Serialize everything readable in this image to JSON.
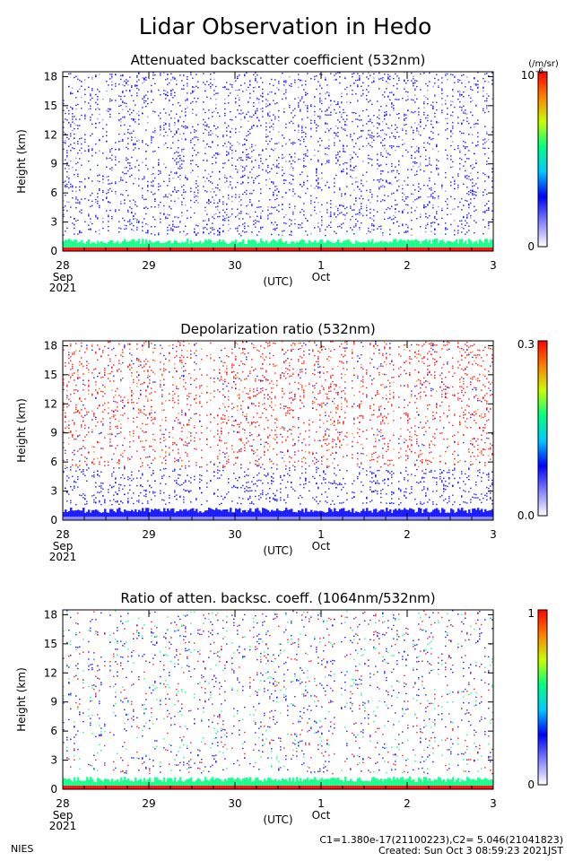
{
  "title": "Lidar Observation in Hedo",
  "footer": {
    "institution": "NIES",
    "constants": "C1=1.380e-17(21100223),C2= 5.046(21041823)",
    "created": "Created: Sun Oct  3 08:59:23 2021JST"
  },
  "colors": {
    "scale": [
      "#ffffff",
      "#8080ff",
      "#0000ff",
      "#00c8ff",
      "#00ff80",
      "#c8ff00",
      "#ff8000",
      "#ff0000"
    ]
  },
  "chart_data": [
    {
      "type": "heatmap",
      "title": "Attenuated backscatter coefficient (532nm)",
      "ylabel": "Height (km)",
      "xlabel": "(UTC)",
      "x_ticks": [
        {
          "value": 0,
          "label": "28",
          "sub": "Sep",
          "sub2": "2021"
        },
        {
          "value": 1,
          "label": "29",
          "sub": "",
          "sub2": ""
        },
        {
          "value": 2,
          "label": "30",
          "sub": "",
          "sub2": ""
        },
        {
          "value": 3,
          "label": "1",
          "sub": "Oct",
          "sub2": ""
        },
        {
          "value": 4,
          "label": "2",
          "sub": "",
          "sub2": ""
        },
        {
          "value": 5,
          "label": "3",
          "sub": "",
          "sub2": ""
        }
      ],
      "y_ticks": [
        "0",
        "3",
        "6",
        "9",
        "12",
        "15",
        "18"
      ],
      "ylim": [
        0,
        18.5
      ],
      "xlim": [
        0,
        5
      ],
      "colorbar": {
        "min_label": "0",
        "max_label": "10",
        "exponent": "-6",
        "unit": "(/m/sr)"
      }
    },
    {
      "type": "heatmap",
      "title": "Depolarization ratio (532nm)",
      "ylabel": "Height (km)",
      "xlabel": "(UTC)",
      "x_ticks": [
        {
          "value": 0,
          "label": "28",
          "sub": "Sep",
          "sub2": "2021"
        },
        {
          "value": 1,
          "label": "29",
          "sub": "",
          "sub2": ""
        },
        {
          "value": 2,
          "label": "30",
          "sub": "",
          "sub2": ""
        },
        {
          "value": 3,
          "label": "1",
          "sub": "Oct",
          "sub2": ""
        },
        {
          "value": 4,
          "label": "2",
          "sub": "",
          "sub2": ""
        },
        {
          "value": 5,
          "label": "3",
          "sub": "",
          "sub2": ""
        }
      ],
      "y_ticks": [
        "0",
        "3",
        "6",
        "9",
        "12",
        "15",
        "18"
      ],
      "ylim": [
        0,
        18.5
      ],
      "xlim": [
        0,
        5
      ],
      "colorbar": {
        "min_label": "0.0",
        "max_label": "0.3",
        "exponent": "",
        "unit": ""
      }
    },
    {
      "type": "heatmap",
      "title": "Ratio of atten. backsc. coeff. (1064nm/532nm)",
      "ylabel": "Height (km)",
      "xlabel": "(UTC)",
      "x_ticks": [
        {
          "value": 0,
          "label": "28",
          "sub": "Sep",
          "sub2": "2021"
        },
        {
          "value": 1,
          "label": "29",
          "sub": "",
          "sub2": ""
        },
        {
          "value": 2,
          "label": "30",
          "sub": "",
          "sub2": ""
        },
        {
          "value": 3,
          "label": "1",
          "sub": "Oct",
          "sub2": ""
        },
        {
          "value": 4,
          "label": "2",
          "sub": "",
          "sub2": ""
        },
        {
          "value": 5,
          "label": "3",
          "sub": "",
          "sub2": ""
        }
      ],
      "y_ticks": [
        "0",
        "3",
        "6",
        "9",
        "12",
        "15",
        "18"
      ],
      "ylim": [
        0,
        18.5
      ],
      "xlim": [
        0,
        5
      ],
      "colorbar": {
        "min_label": "0",
        "max_label": "1",
        "exponent": "",
        "unit": ""
      }
    }
  ]
}
